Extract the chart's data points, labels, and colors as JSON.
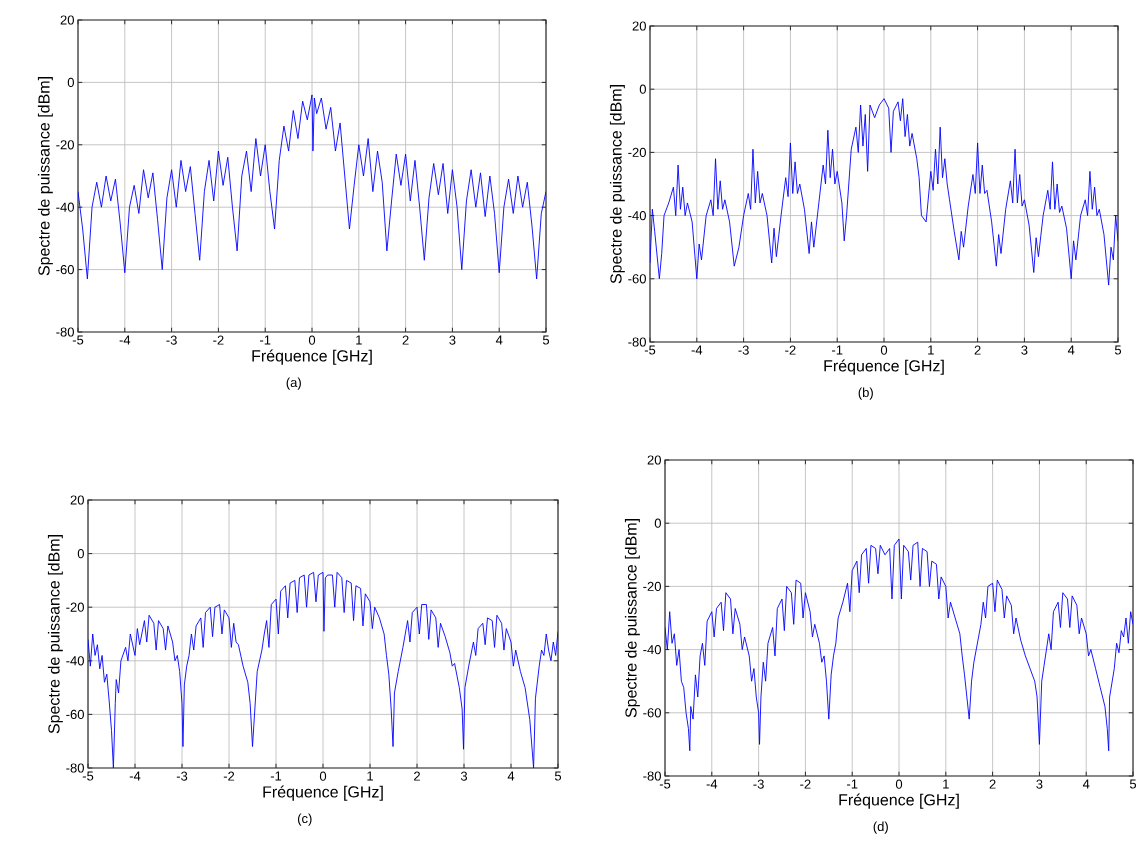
{
  "chart_data": [
    {
      "type": "line",
      "xlabel": "Fréquence [GHz]",
      "ylabel": "Spectre de puissance [dBm]",
      "annotations": [
        "(a)"
      ],
      "color": "#0000ff",
      "xlim": [
        -5,
        5
      ],
      "ylim": [
        -80,
        20
      ],
      "xticks": [
        -5,
        -4,
        -3,
        -2,
        -1,
        0,
        1,
        2,
        3,
        4,
        5
      ],
      "yticks": [
        -80,
        -60,
        -40,
        -20,
        0,
        20
      ],
      "grid": true,
      "x": [
        -5.0,
        -4.9,
        -4.8,
        -4.7,
        -4.6,
        -4.5,
        -4.4,
        -4.3,
        -4.2,
        -4.1,
        -4.0,
        -3.9,
        -3.8,
        -3.7,
        -3.6,
        -3.5,
        -3.4,
        -3.3,
        -3.2,
        -3.1,
        -3.0,
        -2.9,
        -2.8,
        -2.7,
        -2.6,
        -2.5,
        -2.4,
        -2.3,
        -2.2,
        -2.1,
        -2.0,
        -1.9,
        -1.8,
        -1.7,
        -1.6,
        -1.5,
        -1.4,
        -1.3,
        -1.2,
        -1.1,
        -1.0,
        -0.9,
        -0.8,
        -0.7,
        -0.6,
        -0.5,
        -0.4,
        -0.3,
        -0.2,
        -0.1,
        0,
        0.02,
        0.05,
        0.1,
        0.2,
        0.3,
        0.4,
        0.5,
        0.6,
        0.7,
        0.8,
        0.9,
        1.0,
        1.1,
        1.2,
        1.3,
        1.4,
        1.5,
        1.6,
        1.7,
        1.8,
        1.9,
        2.0,
        2.1,
        2.2,
        2.3,
        2.4,
        2.5,
        2.6,
        2.7,
        2.8,
        2.9,
        3.0,
        3.1,
        3.2,
        3.3,
        3.4,
        3.5,
        3.6,
        3.7,
        3.8,
        3.9,
        4.0,
        4.1,
        4.2,
        4.3,
        4.4,
        4.5,
        4.6,
        4.7,
        4.8,
        4.9,
        5.0
      ],
      "values": [
        -35,
        -47,
        -63,
        -40,
        -32,
        -40,
        -30,
        -38,
        -31,
        -45,
        -61,
        -40,
        -33,
        -42,
        -28,
        -37,
        -29,
        -44,
        -60,
        -37,
        -28,
        -40,
        -25,
        -35,
        -27,
        -42,
        -57,
        -35,
        -25,
        -38,
        -22,
        -33,
        -24,
        -40,
        -54,
        -30,
        -22,
        -35,
        -18,
        -30,
        -20,
        -35,
        -47,
        -25,
        -14,
        -22,
        -9,
        -18,
        -6,
        -12,
        -4,
        -22,
        -5,
        -10,
        -5,
        -15,
        -8,
        -22,
        -13,
        -30,
        -47,
        -33,
        -20,
        -30,
        -18,
        -35,
        -22,
        -32,
        -54,
        -38,
        -23,
        -33,
        -23,
        -38,
        -25,
        -40,
        -57,
        -37,
        -26,
        -36,
        -26,
        -42,
        -28,
        -40,
        -60,
        -38,
        -28,
        -40,
        -29,
        -43,
        -30,
        -42,
        -61,
        -40,
        -31,
        -42,
        -30,
        -40,
        -32,
        -46,
        -63,
        -42,
        -35
      ]
    },
    {
      "type": "line",
      "xlabel": "Fréquence [GHz]",
      "ylabel": "Spectre de puissance [dBm]",
      "annotations": [
        "(b)"
      ],
      "color": "#0000ff",
      "xlim": [
        -5,
        5
      ],
      "ylim": [
        -80,
        20
      ],
      "xticks": [
        -5,
        -4,
        -3,
        -2,
        -1,
        0,
        1,
        2,
        3,
        4,
        5
      ],
      "yticks": [
        -80,
        -60,
        -40,
        -20,
        0,
        20
      ],
      "grid": true,
      "x": [
        -5.0,
        -4.95,
        -4.9,
        -4.8,
        -4.75,
        -4.7,
        -4.6,
        -4.5,
        -4.45,
        -4.4,
        -4.35,
        -4.3,
        -4.25,
        -4.2,
        -4.1,
        -4.0,
        -3.95,
        -3.9,
        -3.8,
        -3.7,
        -3.65,
        -3.6,
        -3.55,
        -3.5,
        -3.45,
        -3.4,
        -3.3,
        -3.2,
        -3.1,
        -3.0,
        -2.9,
        -2.85,
        -2.8,
        -2.75,
        -2.7,
        -2.65,
        -2.6,
        -2.5,
        -2.4,
        -2.35,
        -2.3,
        -2.2,
        -2.1,
        -2.05,
        -2.0,
        -1.95,
        -1.9,
        -1.85,
        -1.8,
        -1.7,
        -1.6,
        -1.55,
        -1.5,
        -1.4,
        -1.3,
        -1.25,
        -1.2,
        -1.15,
        -1.1,
        -1.05,
        -1.0,
        -0.9,
        -0.85,
        -0.8,
        -0.7,
        -0.6,
        -0.55,
        -0.5,
        -0.45,
        -0.4,
        -0.35,
        -0.3,
        -0.2,
        -0.1,
        0,
        0.1,
        0.15,
        0.2,
        0.3,
        0.35,
        0.4,
        0.45,
        0.5,
        0.55,
        0.6,
        0.7,
        0.75,
        0.8,
        0.9,
        1.0,
        1.05,
        1.1,
        1.15,
        1.2,
        1.25,
        1.3,
        1.35,
        1.4,
        1.5,
        1.6,
        1.65,
        1.7,
        1.8,
        1.9,
        1.95,
        2.0,
        2.05,
        2.1,
        2.15,
        2.2,
        2.3,
        2.4,
        2.45,
        2.5,
        2.6,
        2.7,
        2.75,
        2.8,
        2.85,
        2.9,
        2.95,
        3.0,
        3.1,
        3.2,
        3.25,
        3.3,
        3.4,
        3.5,
        3.55,
        3.6,
        3.65,
        3.7,
        3.75,
        3.8,
        3.9,
        4.0,
        4.05,
        4.1,
        4.2,
        4.3,
        4.35,
        4.4,
        4.45,
        4.5,
        4.55,
        4.6,
        4.7,
        4.8,
        4.85,
        4.9,
        4.95,
        5.0
      ],
      "values": [
        -55,
        -38,
        -45,
        -60,
        -52,
        -40,
        -36,
        -31,
        -40,
        -24,
        -38,
        -31,
        -40,
        -36,
        -42,
        -60,
        -49,
        -54,
        -40,
        -35,
        -40,
        -22,
        -38,
        -29,
        -38,
        -35,
        -42,
        -56,
        -50,
        -40,
        -33,
        -38,
        -19,
        -36,
        -26,
        -36,
        -33,
        -40,
        -55,
        -44,
        -53,
        -40,
        -28,
        -34,
        -17,
        -33,
        -23,
        -33,
        -30,
        -38,
        -52,
        -42,
        -50,
        -37,
        -24,
        -30,
        -13,
        -28,
        -19,
        -30,
        -26,
        -36,
        -48,
        -40,
        -19,
        -12,
        -20,
        -5,
        -18,
        -8,
        -26,
        -5,
        -9,
        -5,
        -3,
        -6,
        -20,
        -7,
        -4,
        -10,
        -3,
        -15,
        -8,
        -18,
        -14,
        -22,
        -28,
        -40,
        -42,
        -26,
        -32,
        -19,
        -30,
        -12,
        -28,
        -22,
        -30,
        -35,
        -45,
        -54,
        -45,
        -50,
        -37,
        -27,
        -33,
        -17,
        -33,
        -24,
        -33,
        -32,
        -42,
        -56,
        -46,
        -52,
        -38,
        -29,
        -36,
        -19,
        -36,
        -27,
        -37,
        -35,
        -43,
        -58,
        -47,
        -53,
        -40,
        -32,
        -38,
        -23,
        -38,
        -30,
        -39,
        -37,
        -44,
        -60,
        -48,
        -54,
        -40,
        -35,
        -40,
        -26,
        -38,
        -31,
        -40,
        -38,
        -46,
        -62,
        -50,
        -54,
        -40,
        -48
      ]
    },
    {
      "type": "line",
      "xlabel": "Fréquence [GHz]",
      "ylabel": "Spectre de puissance [dBm]",
      "annotations": [
        "(c)"
      ],
      "color": "#0000ff",
      "xlim": [
        -5,
        5
      ],
      "ylim": [
        -80,
        20
      ],
      "xticks": [
        -5,
        -4,
        -3,
        -2,
        -1,
        0,
        1,
        2,
        3,
        4,
        5
      ],
      "yticks": [
        -80,
        -60,
        -40,
        -20,
        0,
        20
      ],
      "grid": true,
      "x": [
        -5.0,
        -4.95,
        -4.9,
        -4.85,
        -4.8,
        -4.75,
        -4.7,
        -4.65,
        -4.6,
        -4.55,
        -4.5,
        -4.46,
        -4.42,
        -4.4,
        -4.35,
        -4.3,
        -4.2,
        -4.15,
        -4.1,
        -4.0,
        -3.95,
        -3.9,
        -3.8,
        -3.75,
        -3.7,
        -3.6,
        -3.55,
        -3.5,
        -3.4,
        -3.35,
        -3.3,
        -3.2,
        -3.15,
        -3.1,
        -3.05,
        -3.0,
        -2.98,
        -2.95,
        -2.9,
        -2.85,
        -2.8,
        -2.75,
        -2.7,
        -2.6,
        -2.55,
        -2.5,
        -2.4,
        -2.35,
        -2.3,
        -2.2,
        -2.15,
        -2.1,
        -2.0,
        -1.95,
        -1.9,
        -1.85,
        -1.8,
        -1.7,
        -1.6,
        -1.55,
        -1.5,
        -1.45,
        -1.4,
        -1.3,
        -1.25,
        -1.2,
        -1.15,
        -1.1,
        -1.0,
        -0.95,
        -0.9,
        -0.8,
        -0.75,
        -0.7,
        -0.6,
        -0.55,
        -0.5,
        -0.4,
        -0.35,
        -0.3,
        -0.2,
        -0.15,
        -0.1,
        0,
        0.02,
        0.05,
        0.1,
        0.2,
        0.25,
        0.3,
        0.4,
        0.45,
        0.5,
        0.6,
        0.65,
        0.7,
        0.8,
        0.85,
        0.9,
        1.0,
        1.05,
        1.1,
        1.2,
        1.3,
        1.35,
        1.4,
        1.45,
        1.49,
        1.52,
        1.6,
        1.7,
        1.75,
        1.8,
        1.85,
        1.9,
        2.0,
        2.05,
        2.1,
        2.2,
        2.25,
        2.3,
        2.4,
        2.45,
        2.5,
        2.6,
        2.7,
        2.75,
        2.8,
        2.9,
        2.96,
        2.99,
        3.02,
        3.1,
        3.2,
        3.25,
        3.3,
        3.4,
        3.45,
        3.5,
        3.6,
        3.65,
        3.7,
        3.8,
        3.85,
        3.9,
        4.0,
        4.05,
        4.1,
        4.2,
        4.3,
        4.4,
        4.48,
        4.52,
        4.6,
        4.65,
        4.7,
        4.75,
        4.8,
        4.85,
        4.9,
        4.95,
        5.0
      ],
      "values": [
        -32,
        -42,
        -30,
        -38,
        -34,
        -43,
        -38,
        -48,
        -45,
        -55,
        -66,
        -80,
        -56,
        -47,
        -52,
        -40,
        -35,
        -40,
        -30,
        -38,
        -28,
        -34,
        -25,
        -33,
        -23,
        -26,
        -36,
        -25,
        -28,
        -36,
        -27,
        -33,
        -40,
        -38,
        -44,
        -56,
        -72,
        -49,
        -42,
        -38,
        -30,
        -36,
        -27,
        -24,
        -35,
        -22,
        -20,
        -31,
        -20,
        -19,
        -30,
        -21,
        -24,
        -35,
        -26,
        -33,
        -34,
        -42,
        -48,
        -56,
        -72,
        -58,
        -44,
        -36,
        -30,
        -25,
        -35,
        -19,
        -17,
        -30,
        -14,
        -12,
        -24,
        -11,
        -10,
        -22,
        -9,
        -8,
        -20,
        -8,
        -7,
        -18,
        -8,
        -7,
        -29,
        -9,
        -8,
        -8,
        -20,
        -7,
        -9,
        -22,
        -10,
        -11,
        -25,
        -12,
        -13,
        -27,
        -15,
        -18,
        -28,
        -20,
        -24,
        -30,
        -38,
        -45,
        -58,
        -72,
        -52,
        -44,
        -35,
        -30,
        -25,
        -33,
        -22,
        -20,
        -30,
        -19,
        -19,
        -32,
        -21,
        -24,
        -35,
        -26,
        -31,
        -37,
        -42,
        -41,
        -50,
        -58,
        -73,
        -50,
        -42,
        -33,
        -38,
        -28,
        -26,
        -34,
        -24,
        -25,
        -35,
        -23,
        -26,
        -36,
        -28,
        -33,
        -42,
        -36,
        -44,
        -50,
        -62,
        -80,
        -54,
        -42,
        -36,
        -38,
        -30,
        -36,
        -40,
        -33,
        -38,
        -29
      ]
    },
    {
      "type": "line",
      "xlabel": "Fréquence [GHz]",
      "ylabel": "Spectre de puissance [dBm]",
      "annotations": [
        "(d)"
      ],
      "color": "#0000ff",
      "xlim": [
        -5,
        5
      ],
      "ylim": [
        -80,
        20
      ],
      "xticks": [
        -5,
        -4,
        -3,
        -2,
        -1,
        0,
        1,
        2,
        3,
        4,
        5
      ],
      "yticks": [
        -80,
        -60,
        -40,
        -20,
        0,
        20
      ],
      "grid": true,
      "x": [
        -5.0,
        -4.95,
        -4.9,
        -4.85,
        -4.8,
        -4.75,
        -4.7,
        -4.65,
        -4.6,
        -4.55,
        -4.5,
        -4.47,
        -4.45,
        -4.4,
        -4.35,
        -4.3,
        -4.25,
        -4.2,
        -4.15,
        -4.1,
        -4.0,
        -3.95,
        -3.9,
        -3.8,
        -3.75,
        -3.7,
        -3.6,
        -3.55,
        -3.5,
        -3.4,
        -3.35,
        -3.3,
        -3.2,
        -3.15,
        -3.1,
        -3.05,
        -3.0,
        -2.98,
        -2.95,
        -2.9,
        -2.85,
        -2.8,
        -2.7,
        -2.65,
        -2.6,
        -2.5,
        -2.45,
        -2.4,
        -2.3,
        -2.25,
        -2.2,
        -2.1,
        -2.05,
        -2.0,
        -1.9,
        -1.85,
        -1.8,
        -1.7,
        -1.65,
        -1.6,
        -1.55,
        -1.5,
        -1.45,
        -1.4,
        -1.35,
        -1.3,
        -1.2,
        -1.1,
        -1.05,
        -1.0,
        -0.9,
        -0.85,
        -0.8,
        -0.7,
        -0.65,
        -0.6,
        -0.5,
        -0.45,
        -0.4,
        -0.3,
        -0.2,
        -0.15,
        -0.1,
        0,
        0.05,
        0.1,
        0.2,
        0.25,
        0.3,
        0.4,
        0.45,
        0.5,
        0.6,
        0.65,
        0.7,
        0.8,
        0.85,
        0.9,
        1.0,
        1.05,
        1.1,
        1.2,
        1.3,
        1.35,
        1.4,
        1.45,
        1.5,
        1.55,
        1.6,
        1.7,
        1.75,
        1.8,
        1.85,
        1.9,
        2.0,
        2.05,
        2.1,
        2.2,
        2.25,
        2.3,
        2.4,
        2.45,
        2.5,
        2.6,
        2.7,
        2.8,
        2.9,
        2.95,
        3.0,
        3.05,
        3.1,
        3.2,
        3.25,
        3.3,
        3.4,
        3.45,
        3.5,
        3.6,
        3.65,
        3.7,
        3.8,
        3.85,
        3.9,
        4.0,
        4.05,
        4.1,
        4.2,
        4.3,
        4.4,
        4.45,
        4.48,
        4.5,
        4.6,
        4.65,
        4.7,
        4.75,
        4.8,
        4.85,
        4.9,
        4.95,
        5.0
      ],
      "values": [
        -33,
        -40,
        -28,
        -38,
        -35,
        -45,
        -40,
        -50,
        -52,
        -60,
        -65,
        -72,
        -58,
        -62,
        -48,
        -55,
        -42,
        -38,
        -45,
        -31,
        -28,
        -36,
        -27,
        -25,
        -34,
        -22,
        -24,
        -35,
        -27,
        -32,
        -40,
        -36,
        -42,
        -50,
        -46,
        -55,
        -60,
        -70,
        -55,
        -44,
        -50,
        -38,
        -33,
        -42,
        -27,
        -24,
        -34,
        -20,
        -22,
        -32,
        -18,
        -19,
        -30,
        -22,
        -28,
        -36,
        -32,
        -38,
        -44,
        -42,
        -50,
        -62,
        -48,
        -42,
        -38,
        -30,
        -25,
        -19,
        -28,
        -15,
        -12,
        -22,
        -10,
        -8,
        -19,
        -7,
        -8,
        -16,
        -7,
        -10,
        -8,
        -24,
        -7,
        -5,
        -24,
        -7,
        -9,
        -18,
        -7,
        -6,
        -20,
        -8,
        -9,
        -20,
        -12,
        -13,
        -24,
        -17,
        -20,
        -30,
        -25,
        -30,
        -35,
        -42,
        -48,
        -55,
        -62,
        -50,
        -44,
        -36,
        -32,
        -25,
        -30,
        -20,
        -19,
        -28,
        -18,
        -21,
        -30,
        -23,
        -26,
        -35,
        -30,
        -37,
        -42,
        -46,
        -50,
        -55,
        -70,
        -50,
        -45,
        -35,
        -40,
        -28,
        -25,
        -33,
        -22,
        -24,
        -33,
        -23,
        -26,
        -35,
        -30,
        -35,
        -42,
        -40,
        -46,
        -52,
        -58,
        -65,
        -72,
        -55,
        -46,
        -38,
        -41,
        -34,
        -36,
        -30,
        -38,
        -28,
        -32
      ]
    }
  ]
}
